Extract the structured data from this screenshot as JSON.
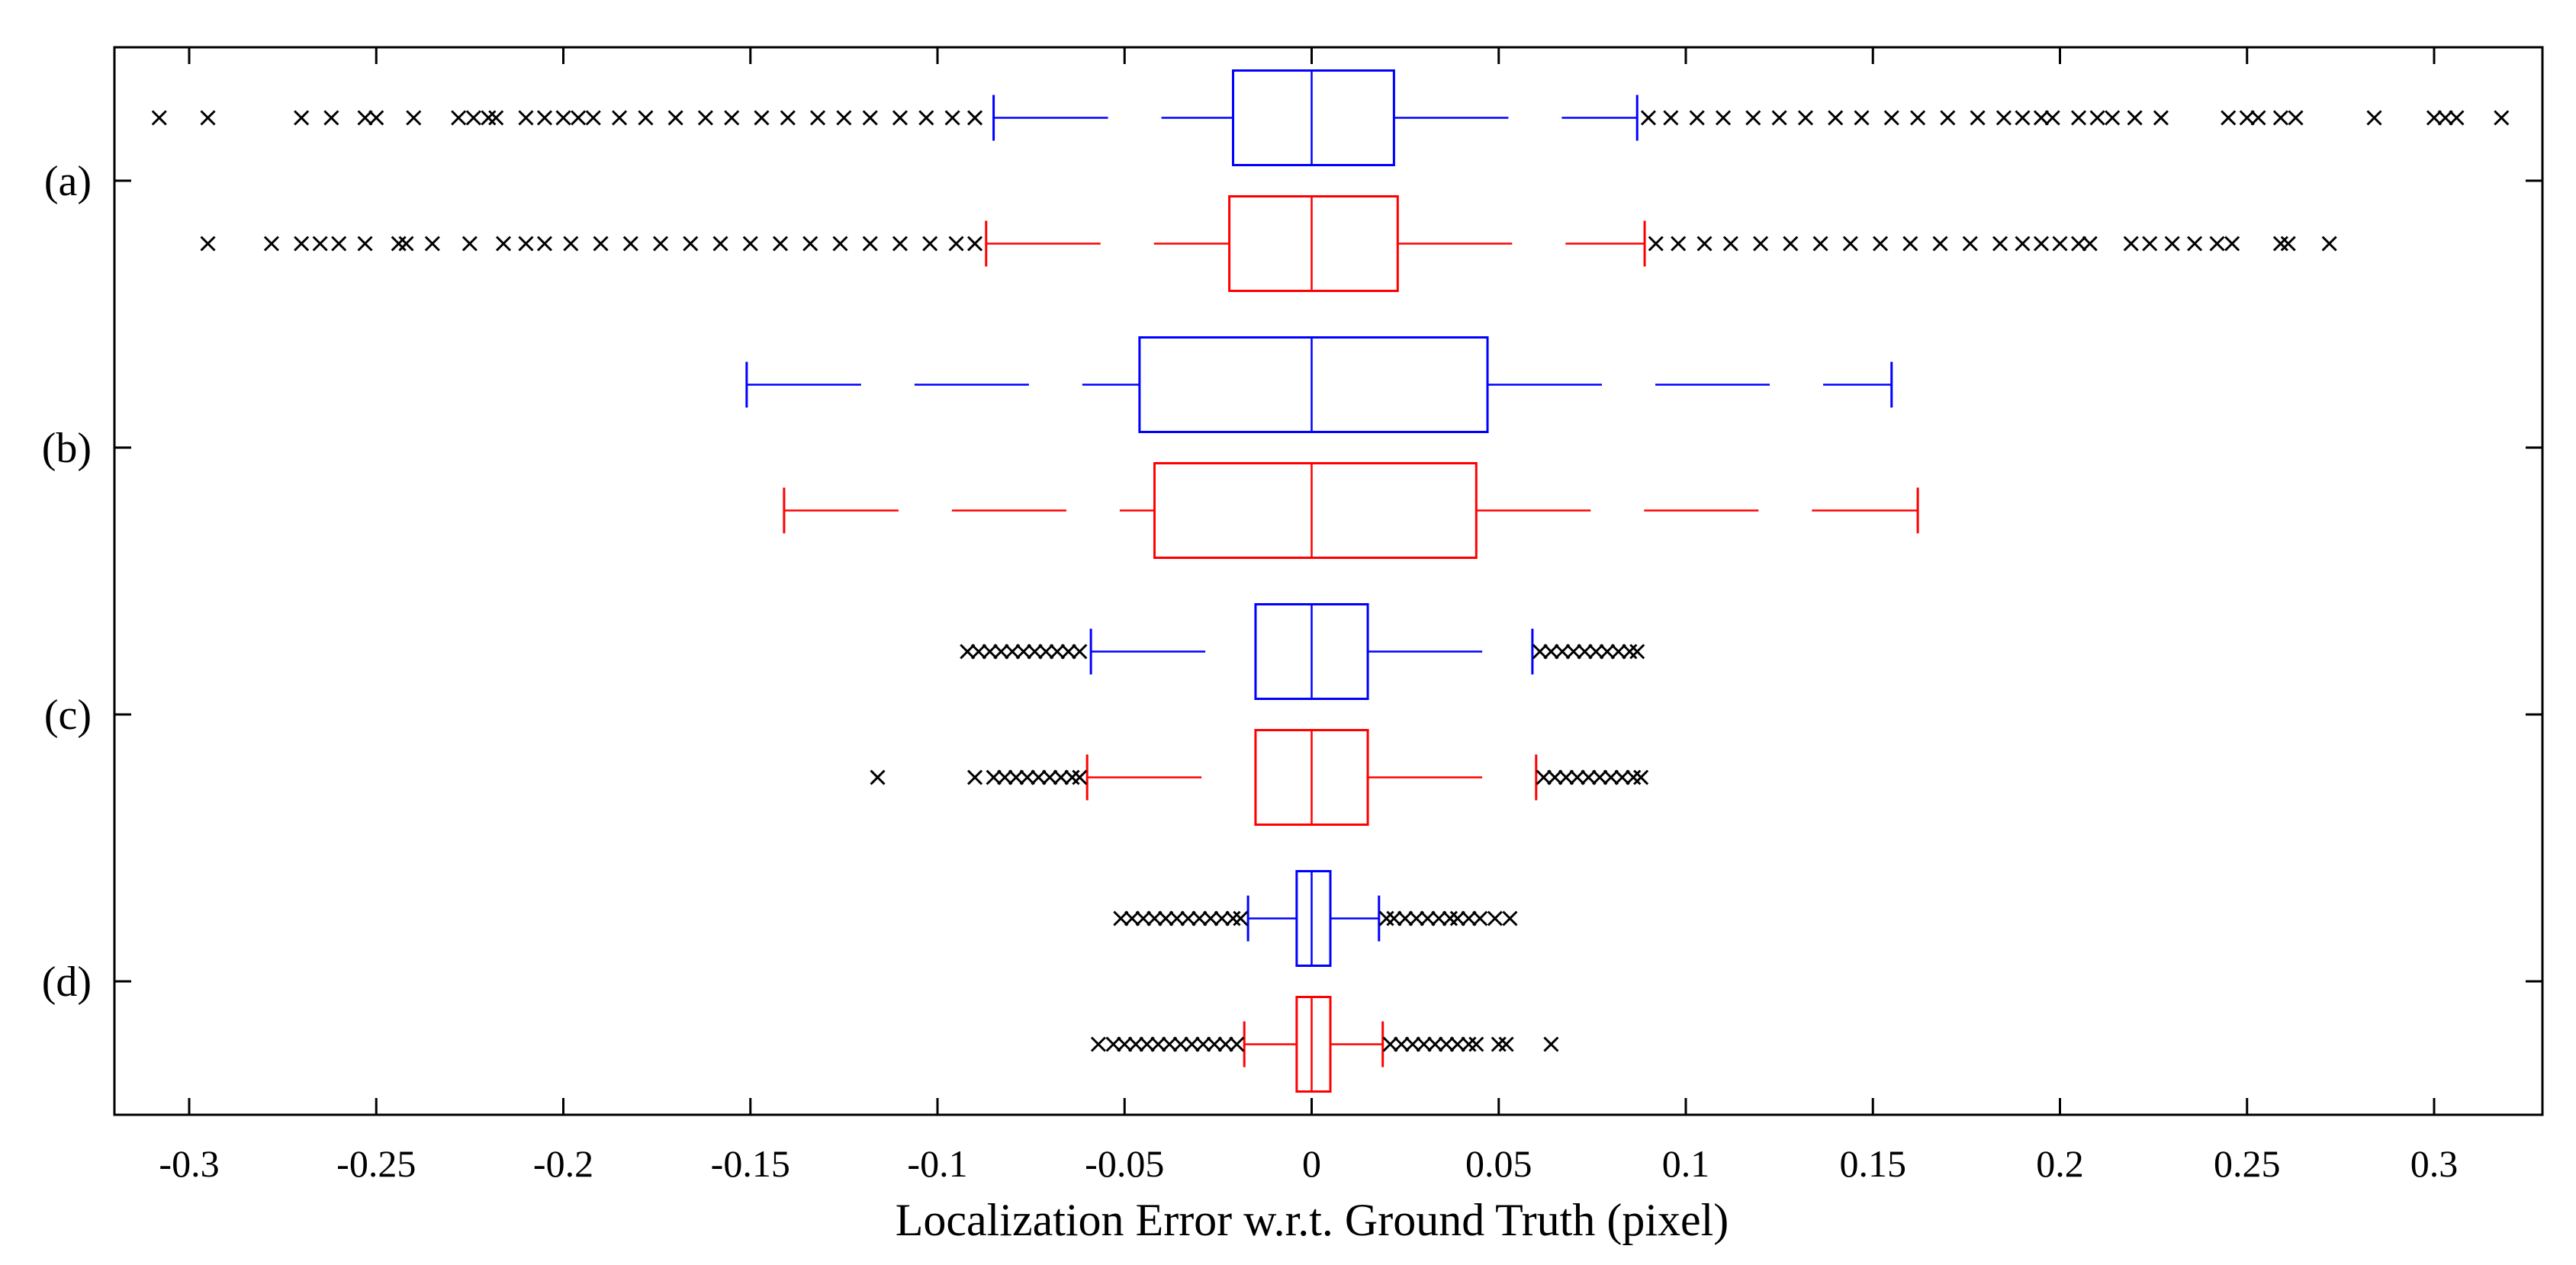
{
  "chart_data": {
    "type": "boxplot",
    "orientation": "horizontal",
    "title": "",
    "xlabel": "Localization Error w.r.t. Ground Truth (pixel)",
    "ylabel": "",
    "xlim": [
      -0.32,
      0.33
    ],
    "xticks": [
      -0.3,
      -0.25,
      -0.2,
      -0.15,
      -0.1,
      -0.05,
      0,
      0.05,
      0.1,
      0.15,
      0.2,
      0.25,
      0.3
    ],
    "xtick_labels": [
      "-0.3",
      "-0.25",
      "-0.2",
      "-0.15",
      "-0.1",
      "-0.05",
      "0",
      "0.05",
      "0.1",
      "0.15",
      "0.2",
      "0.25",
      "0.3"
    ],
    "categories": [
      "(a)",
      "(b)",
      "(c)",
      "(d)"
    ],
    "grid": false,
    "outlier_marker": "x",
    "series_colors": [
      "#0000ff",
      "#ff0000"
    ],
    "boxes": [
      {
        "category": "(a)",
        "color": "#0000ff",
        "whisker_low": -0.085,
        "q1": -0.021,
        "median": 0.0,
        "q3": 0.022,
        "whisker_high": 0.087,
        "outliers": [
          -0.308,
          -0.295,
          -0.27,
          -0.262,
          -0.253,
          -0.25,
          -0.24,
          -0.228,
          -0.224,
          -0.22,
          -0.218,
          -0.21,
          -0.205,
          -0.2,
          -0.196,
          -0.192,
          -0.185,
          -0.178,
          -0.17,
          -0.162,
          -0.155,
          -0.147,
          -0.14,
          -0.132,
          -0.125,
          -0.118,
          -0.11,
          -0.103,
          -0.096,
          -0.09,
          0.09,
          0.096,
          0.103,
          0.11,
          0.118,
          0.125,
          0.132,
          0.14,
          0.147,
          0.155,
          0.162,
          0.17,
          0.178,
          0.185,
          0.19,
          0.195,
          0.198,
          0.205,
          0.21,
          0.214,
          0.22,
          0.227,
          0.245,
          0.25,
          0.253,
          0.259,
          0.263,
          0.284,
          0.3,
          0.303,
          0.306,
          0.318
        ]
      },
      {
        "category": "(a)",
        "color": "#ff0000",
        "whisker_low": -0.087,
        "q1": -0.022,
        "median": 0.0,
        "q3": 0.023,
        "whisker_high": 0.089,
        "outliers": [
          -0.295,
          -0.278,
          -0.27,
          -0.265,
          -0.26,
          -0.253,
          -0.244,
          -0.242,
          -0.235,
          -0.225,
          -0.216,
          -0.21,
          -0.205,
          -0.198,
          -0.19,
          -0.182,
          -0.174,
          -0.166,
          -0.158,
          -0.15,
          -0.142,
          -0.134,
          -0.126,
          -0.118,
          -0.11,
          -0.102,
          -0.095,
          -0.09,
          0.092,
          0.098,
          0.105,
          0.112,
          0.12,
          0.128,
          0.136,
          0.144,
          0.152,
          0.16,
          0.168,
          0.176,
          0.184,
          0.19,
          0.195,
          0.2,
          0.205,
          0.208,
          0.219,
          0.224,
          0.23,
          0.236,
          0.242,
          0.246,
          0.259,
          0.261,
          0.272
        ]
      },
      {
        "category": "(b)",
        "color": "#0000ff",
        "whisker_low": -0.151,
        "q1": -0.046,
        "median": 0.0,
        "q3": 0.047,
        "whisker_high": 0.155,
        "outliers": []
      },
      {
        "category": "(b)",
        "color": "#ff0000",
        "whisker_low": -0.141,
        "q1": -0.042,
        "median": 0.0,
        "q3": 0.044,
        "whisker_high": 0.162,
        "outliers": []
      },
      {
        "category": "(c)",
        "color": "#0000ff",
        "whisker_low": -0.059,
        "q1": -0.015,
        "median": 0.0,
        "q3": 0.015,
        "whisker_high": 0.059,
        "outliers": [
          -0.092,
          -0.089,
          -0.086,
          -0.083,
          -0.08,
          -0.077,
          -0.074,
          -0.071,
          -0.068,
          -0.065,
          -0.062,
          0.061,
          0.064,
          0.067,
          0.07,
          0.073,
          0.076,
          0.079,
          0.082,
          0.085,
          0.087
        ]
      },
      {
        "category": "(c)",
        "color": "#ff0000",
        "whisker_low": -0.06,
        "q1": -0.015,
        "median": 0.0,
        "q3": 0.015,
        "whisker_high": 0.06,
        "outliers": [
          -0.116,
          -0.09,
          -0.085,
          -0.082,
          -0.079,
          -0.076,
          -0.073,
          -0.07,
          -0.067,
          -0.064,
          -0.062,
          0.062,
          0.065,
          0.068,
          0.071,
          0.074,
          0.077,
          0.08,
          0.083,
          0.086,
          0.088
        ]
      },
      {
        "category": "(d)",
        "color": "#0000ff",
        "whisker_low": -0.017,
        "q1": -0.004,
        "median": 0.0,
        "q3": 0.005,
        "whisker_high": 0.018,
        "outliers": [
          -0.051,
          -0.048,
          -0.045,
          -0.042,
          -0.039,
          -0.036,
          -0.033,
          -0.03,
          -0.027,
          -0.024,
          -0.021,
          -0.019,
          0.02,
          0.022,
          0.025,
          0.028,
          0.031,
          0.034,
          0.037,
          0.039,
          0.042,
          0.045,
          0.049,
          0.053
        ]
      },
      {
        "category": "(d)",
        "color": "#ff0000",
        "whisker_low": -0.018,
        "q1": -0.004,
        "median": 0.0,
        "q3": 0.005,
        "whisker_high": 0.019,
        "outliers": [
          -0.057,
          -0.053,
          -0.05,
          -0.047,
          -0.044,
          -0.041,
          -0.038,
          -0.035,
          -0.032,
          -0.029,
          -0.026,
          -0.023,
          -0.02,
          0.021,
          0.024,
          0.027,
          0.03,
          0.033,
          0.036,
          0.039,
          0.042,
          0.044,
          0.05,
          0.052,
          0.064
        ]
      }
    ]
  }
}
